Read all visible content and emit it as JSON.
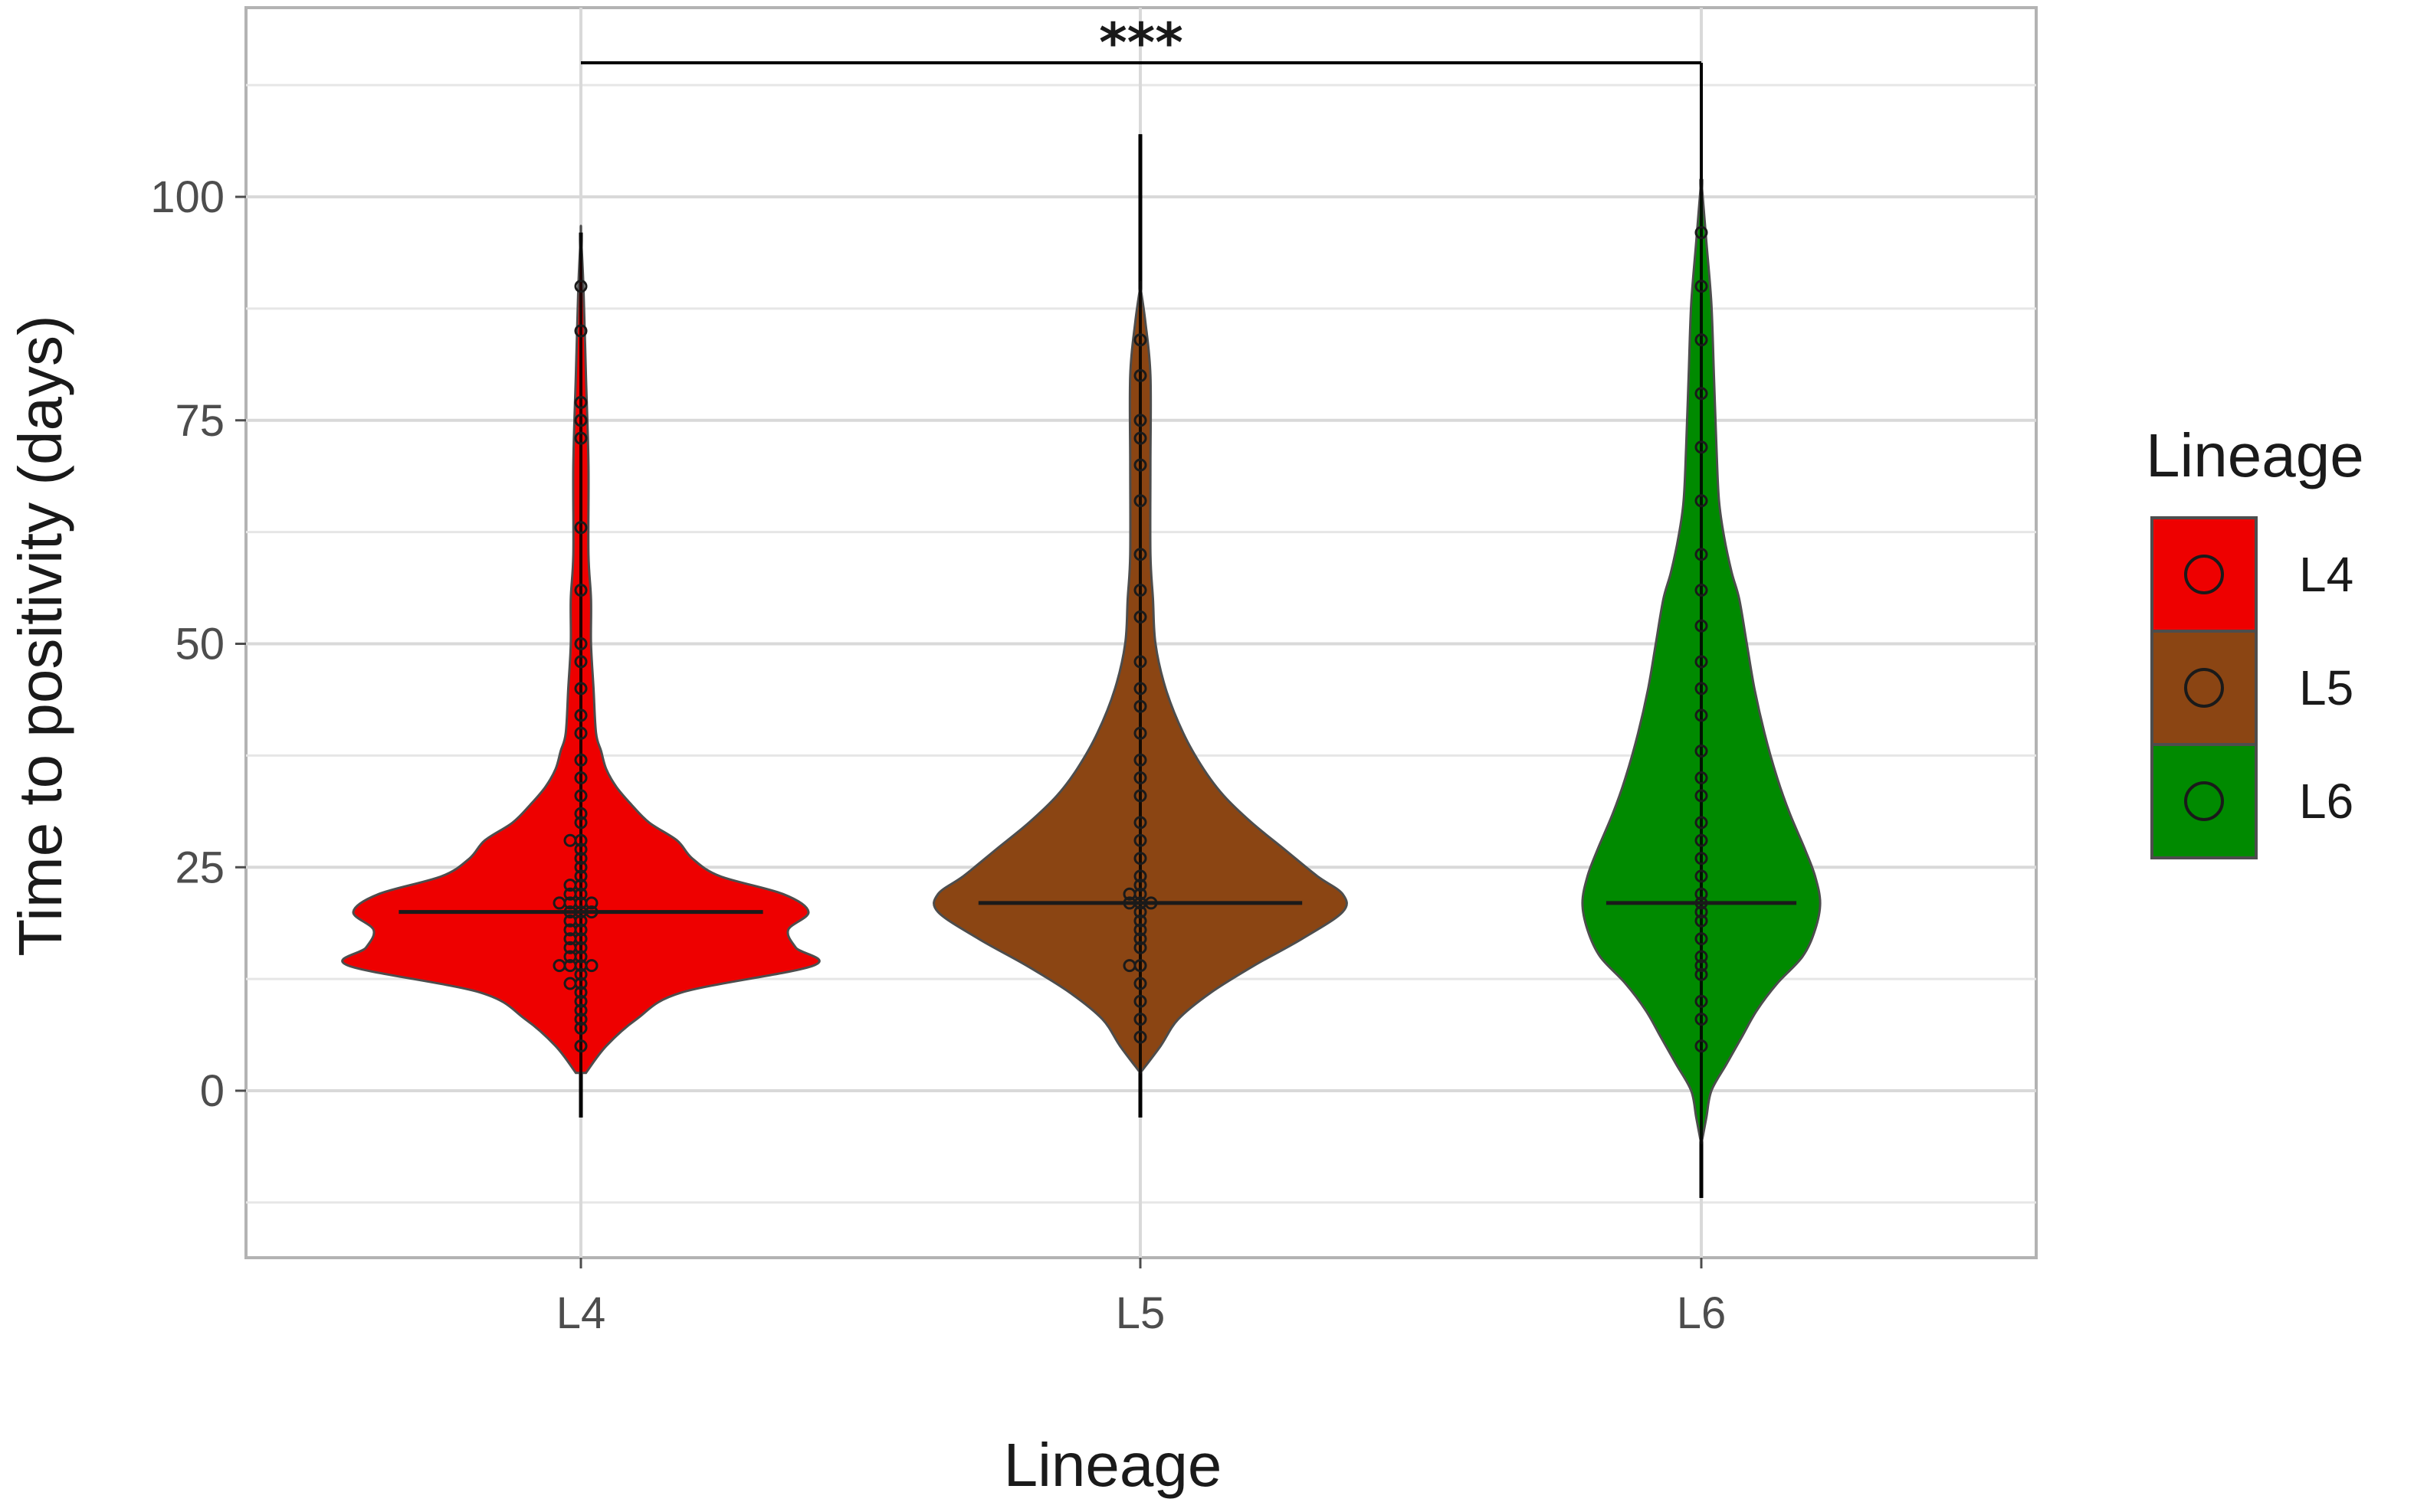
{
  "chart_data": {
    "type": "violin",
    "xlabel": "Lineage",
    "ylabel": "Time to positivity (days)",
    "ylim": [
      -17,
      122
    ],
    "yticks": [
      0,
      25,
      50,
      75,
      100
    ],
    "categories": [
      "L4",
      "L5",
      "L6"
    ],
    "grid": true,
    "legend": {
      "title": "Lineage",
      "position": "right",
      "entries": [
        "L4",
        "L5",
        "L6"
      ]
    },
    "colors": {
      "L4": "#ee0000",
      "L5": "#8b4513",
      "L6": "#008a00"
    },
    "series": [
      {
        "name": "L4",
        "whisker": [
          -3,
          96
        ],
        "median": 20,
        "density": [
          [
            2,
            0.02
          ],
          [
            5,
            0.1
          ],
          [
            8,
            0.22
          ],
          [
            11,
            0.4
          ],
          [
            14,
            0.92
          ],
          [
            16,
            0.85
          ],
          [
            18,
            0.82
          ],
          [
            20,
            0.9
          ],
          [
            22,
            0.8
          ],
          [
            24,
            0.55
          ],
          [
            26,
            0.44
          ],
          [
            28,
            0.38
          ],
          [
            30,
            0.27
          ],
          [
            32,
            0.2
          ],
          [
            34,
            0.14
          ],
          [
            36,
            0.1
          ],
          [
            38,
            0.08
          ],
          [
            40,
            0.06
          ],
          [
            45,
            0.05
          ],
          [
            50,
            0.04
          ],
          [
            55,
            0.04
          ],
          [
            60,
            0.03
          ],
          [
            70,
            0.03
          ],
          [
            80,
            0.02
          ],
          [
            90,
            0.01
          ],
          [
            96,
            0.0
          ]
        ],
        "points": [
          5,
          7,
          8,
          9,
          10,
          11,
          12,
          12,
          13,
          14,
          14,
          14,
          14,
          15,
          15,
          16,
          16,
          17,
          17,
          18,
          18,
          19,
          19,
          20,
          20,
          20,
          21,
          21,
          21,
          21,
          22,
          22,
          23,
          23,
          24,
          25,
          26,
          27,
          28,
          28,
          30,
          31,
          33,
          35,
          37,
          40,
          42,
          45,
          48,
          50,
          56,
          63,
          73,
          75,
          77,
          85,
          90
        ]
      },
      {
        "name": "L5",
        "whisker": [
          -3,
          107
        ],
        "median": 21,
        "density": [
          [
            2,
            0.0
          ],
          [
            5,
            0.08
          ],
          [
            8,
            0.15
          ],
          [
            11,
            0.28
          ],
          [
            14,
            0.45
          ],
          [
            17,
            0.64
          ],
          [
            20,
            0.8
          ],
          [
            22,
            0.8
          ],
          [
            24,
            0.7
          ],
          [
            27,
            0.57
          ],
          [
            30,
            0.44
          ],
          [
            33,
            0.33
          ],
          [
            36,
            0.25
          ],
          [
            40,
            0.17
          ],
          [
            45,
            0.1
          ],
          [
            50,
            0.06
          ],
          [
            55,
            0.05
          ],
          [
            60,
            0.04
          ],
          [
            70,
            0.04
          ],
          [
            80,
            0.04
          ],
          [
            86,
            0.02
          ],
          [
            90,
            0.0
          ]
        ],
        "points": [
          6,
          8,
          10,
          12,
          14,
          14,
          16,
          17,
          18,
          19,
          20,
          21,
          21,
          21,
          22,
          22,
          23,
          24,
          26,
          28,
          30,
          33,
          35,
          37,
          40,
          43,
          45,
          48,
          53,
          56,
          60,
          66,
          70,
          73,
          75,
          80,
          84
        ]
      },
      {
        "name": "L6",
        "whisker": [
          -12,
          102
        ],
        "median": 21,
        "density": [
          [
            -6,
            0.0
          ],
          [
            -3,
            0.02
          ],
          [
            0,
            0.04
          ],
          [
            3,
            0.1
          ],
          [
            6,
            0.16
          ],
          [
            9,
            0.22
          ],
          [
            12,
            0.3
          ],
          [
            15,
            0.4
          ],
          [
            18,
            0.45
          ],
          [
            21,
            0.47
          ],
          [
            24,
            0.45
          ],
          [
            27,
            0.41
          ],
          [
            31,
            0.35
          ],
          [
            35,
            0.3
          ],
          [
            40,
            0.25
          ],
          [
            45,
            0.21
          ],
          [
            50,
            0.18
          ],
          [
            55,
            0.15
          ],
          [
            58,
            0.12
          ],
          [
            62,
            0.09
          ],
          [
            66,
            0.07
          ],
          [
            72,
            0.06
          ],
          [
            80,
            0.05
          ],
          [
            88,
            0.04
          ],
          [
            95,
            0.02
          ],
          [
            102,
            0.0
          ]
        ],
        "points": [
          5,
          8,
          10,
          13,
          14,
          15,
          17,
          19,
          20,
          21,
          22,
          24,
          26,
          28,
          30,
          33,
          35,
          38,
          42,
          45,
          48,
          52,
          56,
          60,
          66,
          72,
          78,
          84,
          90,
          96
        ]
      }
    ],
    "annotations": [
      {
        "from": "L4",
        "to": "L6",
        "y": 115,
        "label": "***"
      }
    ]
  }
}
